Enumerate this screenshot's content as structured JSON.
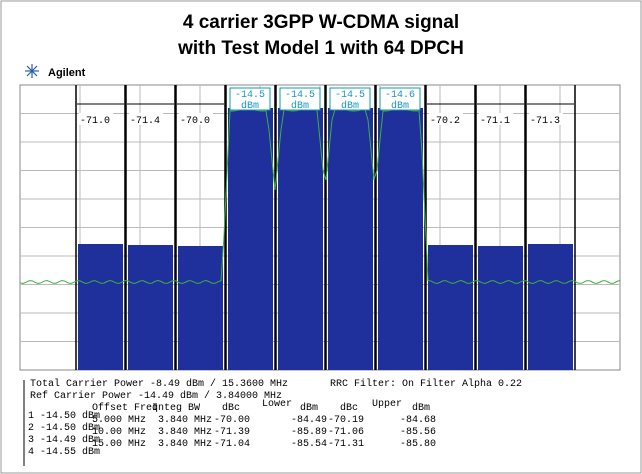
{
  "title_lines": [
    "4 carrier 3GPP W-CDMA signal",
    "with Test Model 1 with 64 DPCH"
  ],
  "brand": "Agilent",
  "channels": [
    {
      "label": "-71.0"
    },
    {
      "label": "-71.4"
    },
    {
      "label": "-70.0"
    },
    {
      "label": "-14.5",
      "unit": "dBm"
    },
    {
      "label": "-14.5",
      "unit": "dBm"
    },
    {
      "label": "-14.5",
      "unit": "dBm"
    },
    {
      "label": "-14.6",
      "unit": "dBm"
    },
    {
      "label": "-70.2"
    },
    {
      "label": "-71.1"
    },
    {
      "label": "-71.3"
    }
  ],
  "summary": {
    "total": "Total Carrier Power -8.49 dBm / 15.3600 MHz",
    "ref": "Ref Carrier Power   -14.49 dBm / 3.84000 MHz",
    "filter": "RRC Filter: On  Filter Alpha  0.22"
  },
  "carriers": [
    "1  -14.50 dBm",
    "2  -14.50 dBm",
    "3  -14.49 dBm",
    "4  -14.55 dBm"
  ],
  "table": {
    "header": [
      "Offset Freq",
      "Integ BW",
      "dBc",
      "Lower",
      "dBm",
      "dBc",
      "Upper",
      "dBm"
    ],
    "rows": [
      [
        "5.000 MHz",
        "3.840 MHz",
        "-70.00",
        "-84.49",
        "-70.19",
        "-84.68"
      ],
      [
        "10.00 MHz",
        "3.840 MHz",
        "-71.39",
        "-85.89",
        "-71.06",
        "-85.56"
      ],
      [
        "15.00 MHz",
        "3.840 MHz",
        "-71.04",
        "-85.54",
        "-71.31",
        "-85.80"
      ]
    ]
  }
}
